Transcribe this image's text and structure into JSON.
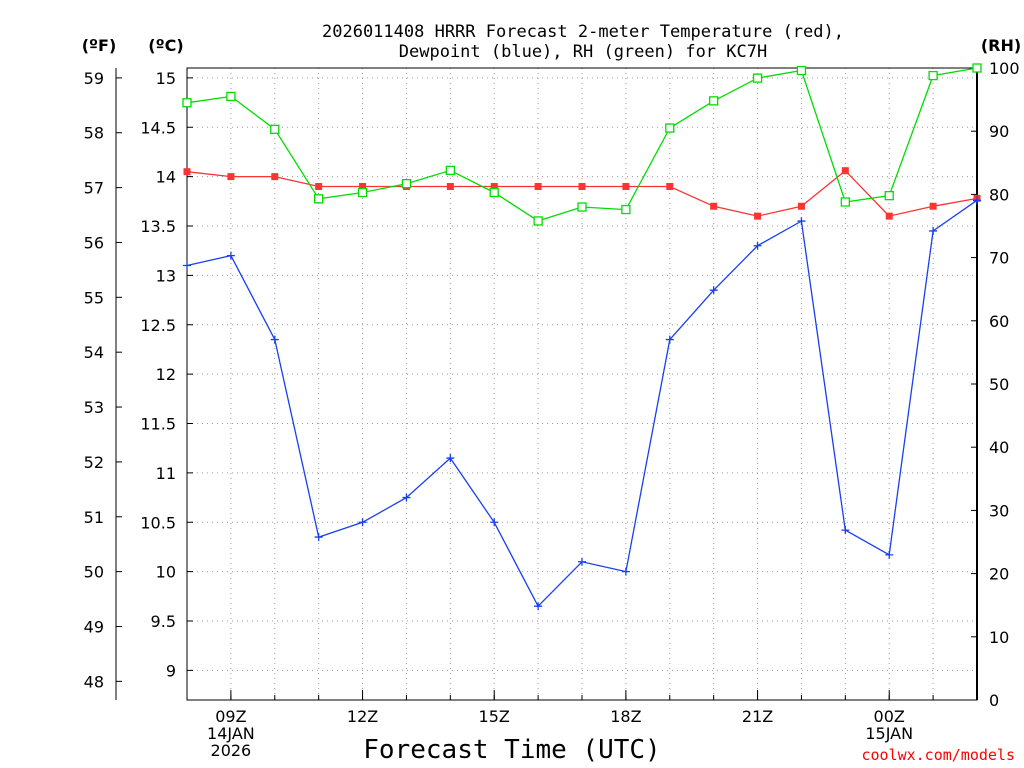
{
  "chart_data": {
    "type": "line",
    "title_line1": "2026011408 HRRR Forecast 2-meter Temperature (red),",
    "title_line2": "Dewpoint (blue), RH (green) for KC7H",
    "xlabel": "Forecast Time (UTC)",
    "credit": "coolwx.com/models",
    "units": {
      "f": "(ºF)",
      "c": "(ºC)",
      "rh": "(RH)"
    },
    "xlim": [
      8,
      26
    ],
    "ylim_c": [
      8.7,
      15.1
    ],
    "ylim_f": [
      47.66,
      59.18
    ],
    "ylim_rh": [
      0,
      100
    ],
    "y_ticks_c": [
      "9",
      "9.5",
      "10",
      "10.5",
      "11",
      "11.5",
      "12",
      "12.5",
      "13",
      "13.5",
      "14",
      "14.5",
      "15"
    ],
    "y_ticks_f": [
      "48",
      "49",
      "50",
      "51",
      "52",
      "53",
      "54",
      "55",
      "56",
      "57",
      "58",
      "59"
    ],
    "y_ticks_rh": [
      "0",
      "10",
      "20",
      "30",
      "40",
      "50",
      "60",
      "70",
      "80",
      "90",
      "100"
    ],
    "x_ticks": [
      {
        "hour": 9,
        "lines": [
          "09Z",
          "14JAN",
          "2026"
        ]
      },
      {
        "hour": 12,
        "lines": [
          "12Z"
        ]
      },
      {
        "hour": 15,
        "lines": [
          "15Z"
        ]
      },
      {
        "hour": 18,
        "lines": [
          "18Z"
        ]
      },
      {
        "hour": 21,
        "lines": [
          "21Z"
        ]
      },
      {
        "hour": 24,
        "lines": [
          "00Z",
          "15JAN"
        ]
      }
    ],
    "x": [
      8,
      9,
      10,
      11,
      12,
      13,
      14,
      15,
      16,
      17,
      18,
      19,
      20,
      21,
      22,
      23,
      24,
      25,
      26
    ],
    "series": [
      {
        "name": "Temperature",
        "axis": "c",
        "color": "#ff3333",
        "marker": "filled-square",
        "values": [
          14.05,
          14.0,
          14.0,
          13.9,
          13.9,
          13.9,
          13.9,
          13.9,
          13.9,
          13.9,
          13.9,
          13.9,
          13.7,
          13.6,
          13.7,
          14.06,
          13.6,
          13.7,
          13.78
        ]
      },
      {
        "name": "Dewpoint",
        "axis": "c",
        "color": "#1a3ff0",
        "marker": "plus",
        "values": [
          13.1,
          13.2,
          12.35,
          10.35,
          10.5,
          10.75,
          11.15,
          10.5,
          9.65,
          10.1,
          10.0,
          12.35,
          12.85,
          13.3,
          13.55,
          10.42,
          10.17,
          13.45,
          13.76
        ]
      },
      {
        "name": "RH",
        "axis": "rh",
        "color": "#00dd00",
        "marker": "open-square",
        "values": [
          94.5,
          95.5,
          90.3,
          79.3,
          80.3,
          81.7,
          83.8,
          80.3,
          75.8,
          78.0,
          77.6,
          90.5,
          94.8,
          98.4,
          99.6,
          78.8,
          79.8,
          98.8,
          100.0
        ]
      }
    ]
  }
}
